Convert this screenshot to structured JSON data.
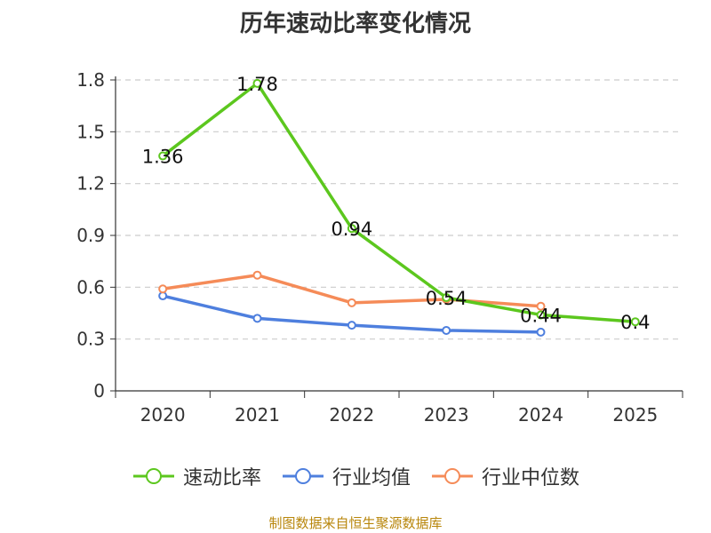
{
  "chart_data": {
    "type": "line",
    "title": "历年速动比率变化情况",
    "categories": [
      "2020",
      "2021",
      "2022",
      "2023",
      "2024",
      "2025"
    ],
    "ylim": [
      0,
      1.8
    ],
    "yticks": [
      "0",
      "0.3",
      "0.6",
      "0.9",
      "1.2",
      "1.5",
      "1.8"
    ],
    "grid": true,
    "legend_position": "bottom",
    "series": [
      {
        "name": "速动比率",
        "color": "#5cc71e",
        "values": [
          1.36,
          1.78,
          0.94,
          0.54,
          0.44,
          0.4
        ],
        "labels": [
          "1.36",
          "1.78",
          "0.94",
          "0.54",
          "0.44",
          "0.4"
        ]
      },
      {
        "name": "行业均值",
        "color": "#4e7fde",
        "values": [
          0.55,
          0.42,
          0.38,
          0.35,
          0.34,
          null
        ]
      },
      {
        "name": "行业中位数",
        "color": "#f58b58",
        "values": [
          0.59,
          0.67,
          0.51,
          0.53,
          0.49,
          null
        ]
      }
    ]
  },
  "source": "制图数据来自恒生聚源数据库"
}
